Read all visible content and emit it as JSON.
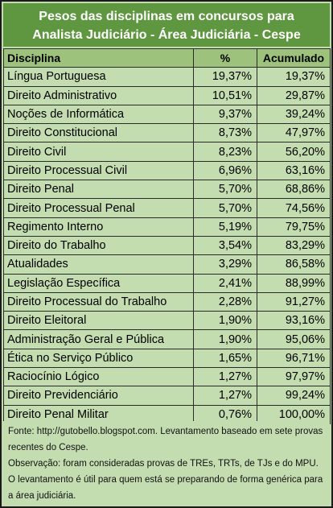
{
  "title": {
    "line1": "Pesos das disciplinas em concursos para",
    "line2": "Analista Judiciário - Área Judiciária - Cespe"
  },
  "table": {
    "headers": [
      "Disciplina",
      "%",
      "Acumulado"
    ],
    "rows": [
      [
        "Língua Portuguesa",
        "19,37%",
        "19,37%"
      ],
      [
        "Direito Administrativo",
        "10,51%",
        "29,87%"
      ],
      [
        "Noções de Informática",
        "9,37%",
        "39,24%"
      ],
      [
        "Direito Constitucional",
        "8,73%",
        "47,97%"
      ],
      [
        "Direito Civil",
        "8,23%",
        "56,20%"
      ],
      [
        "Direito Processual Civil",
        "6,96%",
        "63,16%"
      ],
      [
        "Direito Penal",
        "5,70%",
        "68,86%"
      ],
      [
        "Direito Processual Penal",
        "5,70%",
        "74,56%"
      ],
      [
        "Regimento Interno",
        "5,19%",
        "79,75%"
      ],
      [
        "Direito do Trabalho",
        "3,54%",
        "83,29%"
      ],
      [
        "Atualidades",
        "3,29%",
        "86,58%"
      ],
      [
        "Legislação Específica",
        "2,41%",
        "88,99%"
      ],
      [
        "Direito Processual do Trabalho",
        "2,28%",
        "91,27%"
      ],
      [
        "Direito Eleitoral",
        "1,90%",
        "93,16%"
      ],
      [
        "Administração Geral e Pública",
        "1,90%",
        "95,06%"
      ],
      [
        "Ética no Serviço Público",
        "1,65%",
        "96,71%"
      ],
      [
        "Raciocínio Lógico",
        "1,27%",
        "97,97%"
      ],
      [
        "Direito Previdenciário",
        "1,27%",
        "99,24%"
      ],
      [
        "Direito Penal Militar",
        "0,76%",
        "100,00%"
      ]
    ]
  },
  "footer": {
    "source": "Fonte: http://gutobello.blogspot.com. Levantamento baseado em sete provas recentes do Cespe.",
    "note": "Observação: foram consideradas provas de TREs, TRTs, de TJs e do MPU. O levantamento é útil para quem está se preparando de forma genérica para a área judiciária."
  },
  "colors": {
    "header_green": "#5f9640",
    "column_header_green": "#9cc27c",
    "row_green": "#c4ddb0"
  }
}
